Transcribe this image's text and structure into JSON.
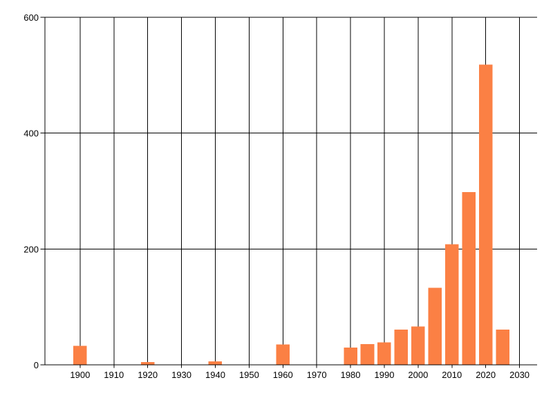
{
  "figure": {
    "background": "#ffffff"
  },
  "chart_data": {
    "type": "bar",
    "title": "",
    "xlabel": "",
    "ylabel": "",
    "categories": [
      1900,
      1920,
      1940,
      1960,
      1980,
      1985,
      1990,
      1995,
      2000,
      2005,
      2010,
      2015,
      2020,
      2025
    ],
    "values": [
      33,
      5,
      6,
      35,
      30,
      36,
      39,
      61,
      66,
      133,
      208,
      298,
      518,
      61
    ],
    "bar_width_years": 4,
    "bar_color": "#fb8044",
    "axis_color": "#000000",
    "grid": true,
    "grid_color": "#000000",
    "label_color": "#000000",
    "x_ticks": [
      "1900",
      "1910",
      "1920",
      "1930",
      "1940",
      "1950",
      "1960",
      "1970",
      "1980",
      "1990",
      "2000",
      "2010",
      "2020",
      "2030"
    ],
    "y_ticks": [
      "0",
      "200",
      "400",
      "600"
    ],
    "xlim": [
      1889.6,
      2035.2
    ],
    "ylim": [
      0,
      600
    ],
    "legend": null
  }
}
